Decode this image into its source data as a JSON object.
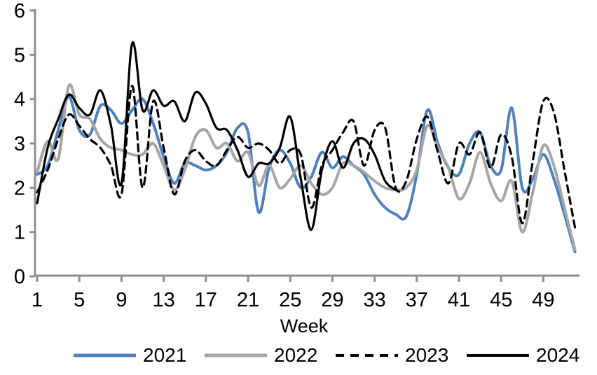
{
  "chart_data": {
    "type": "line",
    "title": "",
    "xlabel": "Week",
    "ylabel": "",
    "xlim": [
      1,
      52
    ],
    "ylim": [
      0,
      6
    ],
    "xticks": [
      1,
      5,
      9,
      13,
      17,
      21,
      25,
      29,
      33,
      37,
      41,
      45,
      49
    ],
    "yticks": [
      0,
      1,
      2,
      3,
      4,
      5,
      6
    ],
    "grid": false,
    "legend_position": "bottom",
    "smooth": true,
    "weeks": [
      1,
      2,
      3,
      4,
      5,
      6,
      7,
      8,
      9,
      10,
      11,
      12,
      13,
      14,
      15,
      16,
      17,
      18,
      19,
      20,
      21,
      22,
      23,
      24,
      25,
      26,
      27,
      28,
      29,
      30,
      31,
      32,
      33,
      34,
      35,
      36,
      37,
      38,
      39,
      40,
      41,
      42,
      43,
      44,
      45,
      46,
      47,
      48,
      49,
      50,
      51,
      52
    ],
    "series": [
      {
        "name": "2021",
        "color": "#4F81BD",
        "style": "solid",
        "width": 4,
        "values": [
          2.3,
          2.5,
          3.3,
          4.05,
          3.3,
          3.2,
          3.85,
          3.75,
          3.45,
          3.75,
          4.0,
          3.45,
          2.7,
          2.1,
          2.55,
          2.5,
          2.4,
          2.5,
          2.8,
          3.35,
          3.25,
          1.45,
          2.45,
          2.85,
          2.55,
          2.0,
          2.25,
          2.8,
          2.45,
          2.7,
          2.5,
          2.3,
          1.85,
          1.55,
          1.4,
          1.35,
          2.3,
          3.75,
          3.0,
          2.45,
          2.3,
          3.0,
          3.25,
          2.5,
          2.4,
          3.8,
          2.0,
          2.2,
          2.75,
          2.2,
          1.4,
          0.55
        ]
      },
      {
        "name": "2022",
        "color": "#A6A6A6",
        "style": "solid",
        "width": 4,
        "values": [
          2.35,
          3.05,
          2.65,
          4.3,
          3.65,
          3.55,
          3.1,
          2.9,
          2.85,
          2.75,
          2.75,
          3.0,
          2.5,
          1.95,
          2.4,
          3.15,
          3.3,
          2.9,
          3.0,
          2.6,
          2.8,
          2.05,
          2.5,
          2.0,
          2.2,
          2.5,
          2.1,
          1.85,
          2.0,
          2.55,
          2.5,
          2.35,
          2.15,
          2.0,
          1.95,
          2.0,
          2.4,
          3.4,
          2.9,
          2.45,
          1.75,
          2.1,
          2.8,
          2.1,
          1.7,
          2.15,
          1.0,
          1.9,
          2.95,
          2.5,
          1.55,
          0.6
        ]
      },
      {
        "name": "2023",
        "color": "#000000",
        "style": "dashed",
        "width": 3.2,
        "values": [
          1.9,
          2.4,
          3.1,
          3.65,
          3.4,
          3.1,
          2.9,
          2.5,
          1.85,
          4.3,
          2.0,
          3.95,
          2.9,
          1.85,
          2.6,
          2.85,
          2.6,
          2.5,
          2.85,
          3.15,
          2.9,
          3.0,
          2.85,
          2.55,
          2.85,
          2.75,
          1.55,
          2.5,
          2.85,
          3.25,
          3.5,
          2.5,
          3.3,
          3.35,
          2.0,
          2.15,
          3.1,
          3.6,
          2.8,
          2.1,
          3.0,
          2.75,
          3.25,
          2.45,
          3.2,
          2.7,
          1.2,
          2.6,
          3.95,
          3.7,
          2.4,
          1.1
        ]
      },
      {
        "name": "2024",
        "color": "#000000",
        "style": "solid",
        "width": 3.2,
        "values": [
          1.65,
          2.9,
          3.55,
          4.1,
          3.8,
          3.65,
          4.2,
          3.4,
          2.1,
          5.25,
          3.75,
          4.2,
          3.85,
          3.95,
          3.5,
          4.15,
          3.9,
          3.35,
          3.3,
          2.85,
          2.25,
          2.55,
          2.55,
          2.9,
          3.6,
          2.2,
          1.05,
          2.4,
          3.05,
          2.45,
          3.0,
          3.1,
          2.75,
          2.15,
          1.95,
          null,
          null,
          null,
          null,
          null,
          null,
          null,
          null,
          null,
          null,
          null,
          null,
          null,
          null,
          null,
          null,
          null
        ]
      }
    ]
  },
  "legend": {
    "items": [
      {
        "label": "2021"
      },
      {
        "label": "2022"
      },
      {
        "label": "2023"
      },
      {
        "label": "2024"
      }
    ]
  },
  "colors": {
    "axis": "#8F8F8F",
    "text": "#000000",
    "background": "#FFFFFF",
    "accent_blue": "#4F81BD",
    "accent_gray": "#A6A6A6",
    "accent_black": "#000000"
  }
}
